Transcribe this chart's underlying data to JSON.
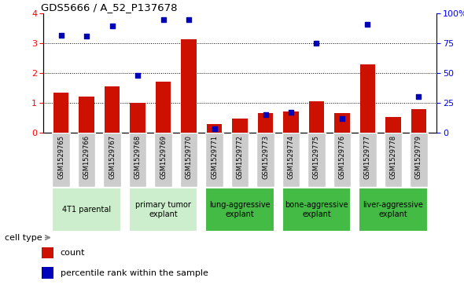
{
  "title": "GDS5666 / A_52_P137678",
  "samples": [
    "GSM1529765",
    "GSM1529766",
    "GSM1529767",
    "GSM1529768",
    "GSM1529769",
    "GSM1529770",
    "GSM1529771",
    "GSM1529772",
    "GSM1529773",
    "GSM1529774",
    "GSM1529775",
    "GSM1529776",
    "GSM1529777",
    "GSM1529778",
    "GSM1529779"
  ],
  "counts": [
    1.35,
    1.2,
    1.55,
    1.0,
    1.7,
    3.15,
    0.28,
    0.48,
    0.65,
    0.72,
    1.05,
    0.65,
    2.3,
    0.52,
    0.8
  ],
  "percentiles": [
    82,
    81,
    90,
    48,
    95,
    95,
    3,
    null,
    15,
    17,
    75,
    12,
    91,
    null,
    30
  ],
  "ylim_left": [
    0,
    4
  ],
  "ylim_right": [
    0,
    100
  ],
  "yticks_left": [
    0,
    1,
    2,
    3,
    4
  ],
  "yticks_right": [
    0,
    25,
    50,
    75,
    100
  ],
  "ytick_labels_right": [
    "0",
    "25",
    "50",
    "75",
    "100%"
  ],
  "bar_color": "#cc1100",
  "dot_color": "#0000bb",
  "cell_groups": [
    {
      "label": "4T1 parental",
      "indices": [
        0,
        1,
        2
      ],
      "color": "#cceecc"
    },
    {
      "label": "primary tumor\nexplant",
      "indices": [
        3,
        4,
        5
      ],
      "color": "#cceecc"
    },
    {
      "label": "lung-aggressive\nexplant",
      "indices": [
        6,
        7,
        8
      ],
      "color": "#44bb44"
    },
    {
      "label": "bone-aggressive\nexplant",
      "indices": [
        9,
        10,
        11
      ],
      "color": "#44bb44"
    },
    {
      "label": "liver-aggressive\nexplant",
      "indices": [
        12,
        13,
        14
      ],
      "color": "#44bb44"
    }
  ],
  "legend_count_label": "count",
  "legend_percentile_label": "percentile rank within the sample",
  "cell_type_label": "cell type"
}
